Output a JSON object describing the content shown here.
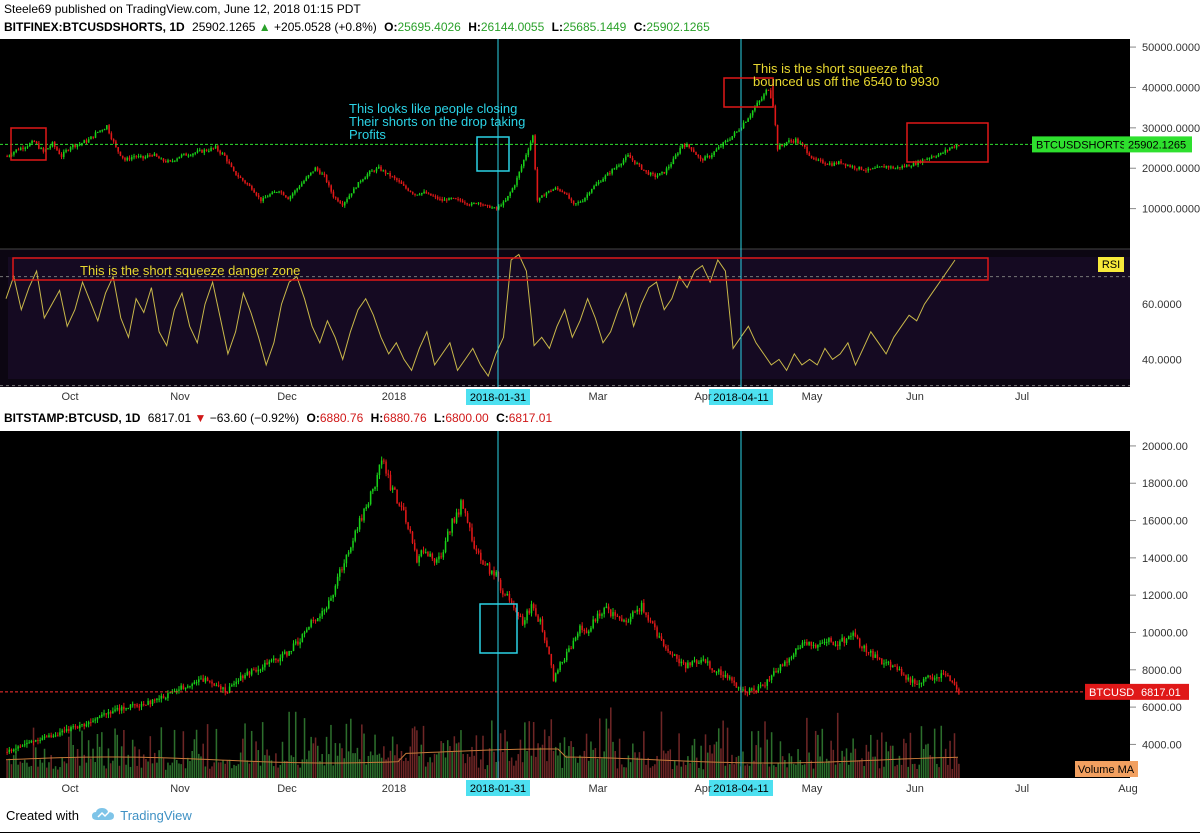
{
  "header": {
    "author": "Steele69",
    "published_text": "published on TradingView.com, June 12, 2018 01:15 PDT"
  },
  "top_legend": {
    "symbol": "BITFINEX:BTCUSDSHORTS, 1D",
    "last": "25902.1265",
    "change_arrow": "▲",
    "change": "+205.0528 (+0.8%)",
    "o_label": "O:",
    "o": "25695.4026",
    "h_label": "H:",
    "h": "26144.0055",
    "l_label": "L:",
    "l": "25685.1449",
    "c_label": "C:",
    "c": "25902.1265"
  },
  "bottom_legend": {
    "symbol": "BITSTAMP:BTCUSD, 1D",
    "last": "6817.01",
    "change_arrow": "▼",
    "change": "−63.60 (−0.92%)",
    "o_label": "O:",
    "o": "6880.76",
    "h_label": "H:",
    "h": "6880.76",
    "l_label": "L:",
    "l": "6800.00",
    "c_label": "C:",
    "c": "6817.01"
  },
  "footer": {
    "created_with": "Created with",
    "brand": "TradingView"
  },
  "colors": {
    "up": "#19d019",
    "down": "#e01818",
    "rsi": "#c9b84a",
    "annotation_text_cyan": "#2bd3e6",
    "annotation_text_yellow": "#e8d830",
    "box_red": "#e01818",
    "box_cyan": "#2bd3e6"
  },
  "chart_data": [
    {
      "type": "candlestick",
      "panel": "shorts",
      "symbol": "BTCUSDSHORTS",
      "price_tag": "BTCUSDSHORTS",
      "price_tag_value": "25902.1265",
      "ylim": [
        0,
        52000
      ],
      "y_ticks": [
        "50000.0000",
        "40000.0000",
        "30000.0000",
        "20000.0000",
        "10000.0000"
      ],
      "y_tick_values": [
        50000,
        40000,
        30000,
        20000,
        10000
      ],
      "x_tick_labels": [
        "Oct",
        "Nov",
        "Dec",
        "2018",
        "Mar",
        "Apr",
        "May",
        "Jun",
        "Jul"
      ],
      "close_path": [
        [
          0,
          23000
        ],
        [
          4,
          24500
        ],
        [
          8,
          25500
        ],
        [
          12,
          26500
        ],
        [
          16,
          24000
        ],
        [
          20,
          26000
        ],
        [
          24,
          23000
        ],
        [
          28,
          25500
        ],
        [
          32,
          26000
        ],
        [
          36,
          27000
        ],
        [
          40,
          29000
        ],
        [
          44,
          30500
        ],
        [
          48,
          25000
        ],
        [
          52,
          22000
        ],
        [
          56,
          23000
        ],
        [
          60,
          22500
        ],
        [
          64,
          23500
        ],
        [
          68,
          22000
        ],
        [
          72,
          21500
        ],
        [
          76,
          23000
        ],
        [
          80,
          23500
        ],
        [
          84,
          24000
        ],
        [
          88,
          24500
        ],
        [
          92,
          25000
        ],
        [
          96,
          23000
        ],
        [
          100,
          19000
        ],
        [
          104,
          17000
        ],
        [
          108,
          15000
        ],
        [
          112,
          12000
        ],
        [
          116,
          13500
        ],
        [
          120,
          14500
        ],
        [
          124,
          12500
        ],
        [
          128,
          15000
        ],
        [
          132,
          17500
        ],
        [
          136,
          20000
        ],
        [
          140,
          18000
        ],
        [
          144,
          13000
        ],
        [
          148,
          11000
        ],
        [
          152,
          14000
        ],
        [
          156,
          17000
        ],
        [
          160,
          19000
        ],
        [
          164,
          20000
        ],
        [
          168,
          18500
        ],
        [
          172,
          17000
        ],
        [
          176,
          15000
        ],
        [
          180,
          13500
        ],
        [
          184,
          14000
        ],
        [
          188,
          13000
        ],
        [
          192,
          12000
        ],
        [
          196,
          12500
        ],
        [
          200,
          12000
        ],
        [
          204,
          11000
        ],
        [
          208,
          11500
        ],
        [
          212,
          10500
        ],
        [
          216,
          10000
        ],
        [
          220,
          12000
        ],
        [
          224,
          16000
        ],
        [
          228,
          22000
        ],
        [
          232,
          28000
        ],
        [
          234,
          12000
        ],
        [
          238,
          14000
        ],
        [
          242,
          15000
        ],
        [
          246,
          14000
        ],
        [
          250,
          11000
        ],
        [
          254,
          12000
        ],
        [
          258,
          15000
        ],
        [
          262,
          17000
        ],
        [
          266,
          19000
        ],
        [
          270,
          21000
        ],
        [
          274,
          23000
        ],
        [
          278,
          21000
        ],
        [
          282,
          19000
        ],
        [
          286,
          18000
        ],
        [
          290,
          19000
        ],
        [
          294,
          22000
        ],
        [
          298,
          26000
        ],
        [
          302,
          25000
        ],
        [
          306,
          22000
        ],
        [
          310,
          23000
        ],
        [
          314,
          25000
        ],
        [
          318,
          27000
        ],
        [
          322,
          29000
        ],
        [
          326,
          32000
        ],
        [
          330,
          35000
        ],
        [
          334,
          38000
        ],
        [
          336,
          40000
        ],
        [
          338,
          36000
        ],
        [
          340,
          25000
        ],
        [
          344,
          26500
        ],
        [
          348,
          27000
        ],
        [
          352,
          25000
        ],
        [
          356,
          22000
        ],
        [
          360,
          21500
        ],
        [
          364,
          21000
        ],
        [
          368,
          21500
        ],
        [
          372,
          20500
        ],
        [
          376,
          20000
        ],
        [
          380,
          19500
        ],
        [
          384,
          20000
        ],
        [
          388,
          20500
        ],
        [
          392,
          20000
        ],
        [
          396,
          20500
        ],
        [
          400,
          21000
        ],
        [
          404,
          22000
        ],
        [
          408,
          23000
        ],
        [
          412,
          23500
        ],
        [
          416,
          25000
        ],
        [
          420,
          25902
        ]
      ],
      "annotations": [
        {
          "text_lines": [
            "This looks like people closing",
            "Their shorts on the drop taking",
            "Profits"
          ]
        },
        {
          "text_lines": [
            "This is the short squeeze that",
            "bounced us off the 6540 to 9930"
          ]
        }
      ]
    },
    {
      "type": "line",
      "panel": "rsi",
      "series": [
        {
          "name": "RSI"
        }
      ],
      "ylim": [
        30,
        80
      ],
      "y_ticks": [
        "60.0000",
        "40.0000"
      ],
      "y_tick_values": [
        60,
        40
      ],
      "annotation": "This is the short squeeze danger zone",
      "values": [
        62,
        70,
        58,
        66,
        72,
        55,
        60,
        65,
        52,
        58,
        68,
        61,
        54,
        64,
        70,
        55,
        48,
        62,
        57,
        66,
        50,
        45,
        58,
        64,
        52,
        46,
        60,
        68,
        55,
        42,
        50,
        64,
        57,
        48,
        38,
        46,
        60,
        68,
        70,
        62,
        52,
        46,
        54,
        48,
        40,
        50,
        58,
        62,
        56,
        48,
        42,
        46,
        40,
        36,
        44,
        50,
        38,
        42,
        46,
        36,
        40,
        44,
        38,
        34,
        42,
        48,
        76,
        78,
        72,
        45,
        48,
        44,
        52,
        58,
        48,
        54,
        62,
        55,
        46,
        50,
        58,
        64,
        52,
        60,
        66,
        68,
        58,
        62,
        70,
        66,
        72,
        74,
        68,
        76,
        72,
        44,
        48,
        52,
        46,
        42,
        38,
        40,
        36,
        42,
        38,
        40,
        38,
        44,
        40,
        42,
        46,
        38,
        44,
        50,
        46,
        42,
        48,
        52,
        56,
        54,
        60,
        64,
        68,
        72,
        76
      ]
    },
    {
      "type": "candlestick",
      "panel": "btcusd",
      "symbol": "BTCUSD",
      "price_tag": "BTCUSD",
      "price_tag_value": "6817.01",
      "ylim": [
        2200,
        20800
      ],
      "y_ticks": [
        "20000.00",
        "18000.00",
        "16000.00",
        "14000.00",
        "12000.00",
        "10000.00",
        "8000.00",
        "6000.00",
        "4000.00"
      ],
      "y_tick_values": [
        20000,
        18000,
        16000,
        14000,
        12000,
        10000,
        8000,
        6000,
        4000
      ],
      "x_tick_labels": [
        "Oct",
        "Nov",
        "Dec",
        "2018",
        "Mar",
        "Apr",
        "May",
        "Jun",
        "Jul",
        "Aug"
      ],
      "close_path": [
        [
          0,
          3600
        ],
        [
          6,
          3900
        ],
        [
          12,
          4200
        ],
        [
          18,
          4400
        ],
        [
          24,
          4600
        ],
        [
          30,
          4900
        ],
        [
          36,
          5100
        ],
        [
          42,
          5600
        ],
        [
          48,
          5800
        ],
        [
          54,
          6000
        ],
        [
          60,
          6100
        ],
        [
          66,
          6300
        ],
        [
          72,
          6600
        ],
        [
          78,
          7000
        ],
        [
          84,
          7300
        ],
        [
          90,
          7500
        ],
        [
          96,
          7200
        ],
        [
          100,
          6800
        ],
        [
          104,
          7500
        ],
        [
          110,
          7900
        ],
        [
          116,
          8200
        ],
        [
          122,
          8500
        ],
        [
          128,
          9000
        ],
        [
          134,
          9800
        ],
        [
          140,
          10800
        ],
        [
          146,
          11500
        ],
        [
          152,
          13500
        ],
        [
          158,
          15500
        ],
        [
          164,
          17000
        ],
        [
          170,
          19200
        ],
        [
          174,
          18000
        ],
        [
          178,
          17000
        ],
        [
          182,
          15500
        ],
        [
          186,
          14000
        ],
        [
          190,
          14500
        ],
        [
          194,
          13500
        ],
        [
          198,
          14500
        ],
        [
          202,
          16000
        ],
        [
          206,
          16800
        ],
        [
          210,
          15500
        ],
        [
          214,
          14000
        ],
        [
          218,
          13500
        ],
        [
          222,
          13000
        ],
        [
          226,
          12000
        ],
        [
          230,
          11500
        ],
        [
          234,
          10500
        ],
        [
          238,
          11500
        ],
        [
          242,
          10500
        ],
        [
          246,
          9000
        ],
        [
          248,
          7500
        ],
        [
          252,
          8500
        ],
        [
          256,
          9200
        ],
        [
          260,
          10200
        ],
        [
          264,
          10000
        ],
        [
          268,
          11000
        ],
        [
          272,
          11300
        ],
        [
          276,
          10800
        ],
        [
          280,
          10500
        ],
        [
          284,
          11000
        ],
        [
          288,
          11400
        ],
        [
          292,
          10500
        ],
        [
          296,
          9800
        ],
        [
          300,
          9000
        ],
        [
          304,
          8600
        ],
        [
          308,
          8200
        ],
        [
          312,
          8400
        ],
        [
          316,
          8600
        ],
        [
          320,
          8100
        ],
        [
          324,
          7800
        ],
        [
          328,
          7500
        ],
        [
          332,
          7000
        ],
        [
          336,
          6900
        ],
        [
          340,
          7000
        ],
        [
          344,
          7200
        ],
        [
          348,
          7900
        ],
        [
          352,
          8200
        ],
        [
          356,
          8800
        ],
        [
          360,
          9300
        ],
        [
          364,
          9500
        ],
        [
          368,
          9300
        ],
        [
          372,
          9600
        ],
        [
          376,
          9400
        ],
        [
          380,
          9600
        ],
        [
          384,
          9800
        ],
        [
          388,
          9200
        ],
        [
          392,
          8900
        ],
        [
          396,
          8500
        ],
        [
          400,
          8300
        ],
        [
          404,
          8100
        ],
        [
          408,
          7600
        ],
        [
          412,
          7300
        ],
        [
          416,
          7500
        ],
        [
          420,
          7600
        ],
        [
          424,
          7700
        ],
        [
          428,
          7500
        ],
        [
          432,
          6817
        ]
      ],
      "volume_ma_label": "Volume MA"
    }
  ],
  "date_markers": [
    {
      "label": "2018-01-31"
    },
    {
      "label": "2018-04-11"
    }
  ]
}
